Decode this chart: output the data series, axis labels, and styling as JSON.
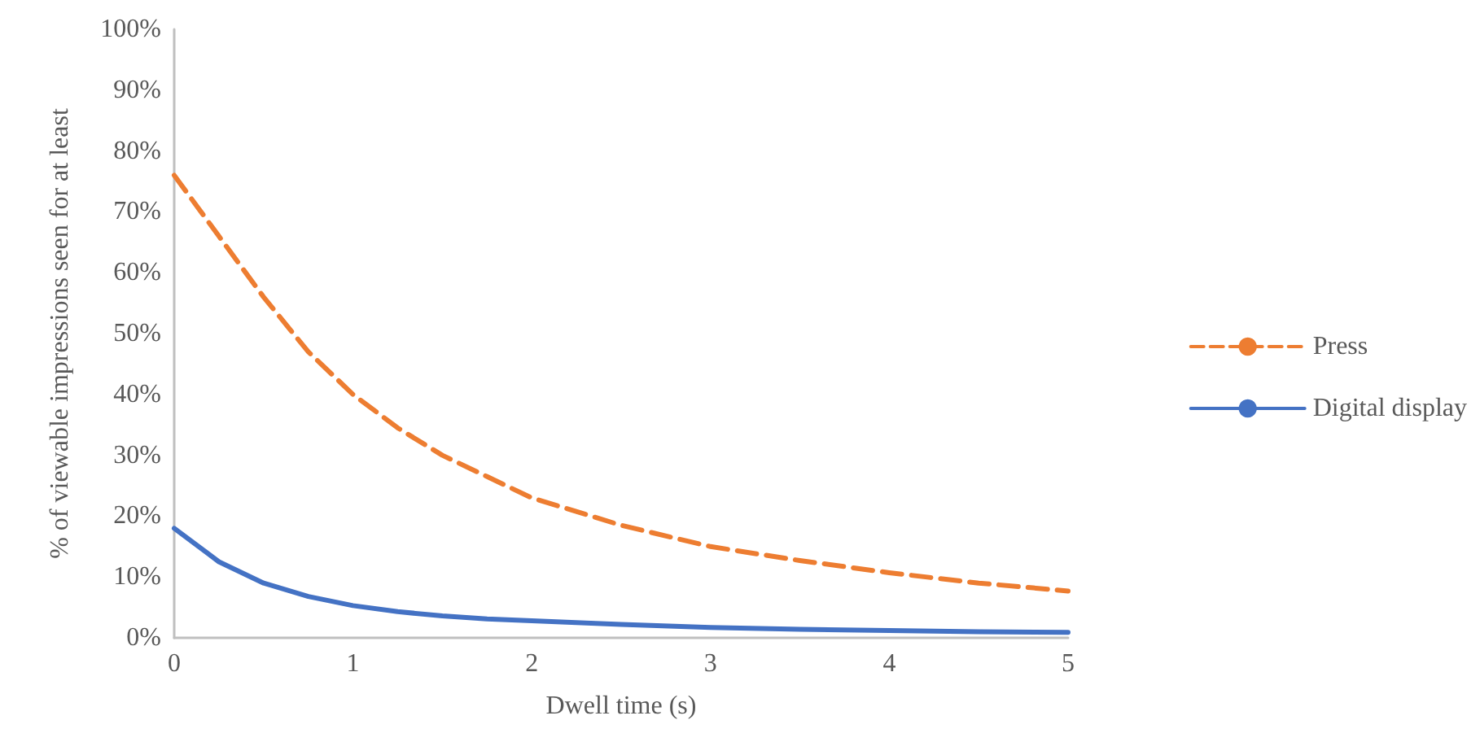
{
  "chart_data": {
    "type": "line",
    "xlabel": "Dwell time (s)",
    "ylabel": "% of viewable impressions seen for at least",
    "x": [
      0,
      0.25,
      0.5,
      0.75,
      1,
      1.25,
      1.5,
      1.75,
      2,
      2.5,
      3,
      3.5,
      4,
      4.5,
      5
    ],
    "series": [
      {
        "name": "Press",
        "color": "#ed7d31",
        "line_style": "dashed",
        "values": [
          76,
          66,
          56,
          47,
          40,
          34.5,
          30,
          26.5,
          23,
          18.5,
          15,
          12.7,
          10.7,
          9,
          7.7
        ]
      },
      {
        "name": "Digital display",
        "color": "#4472c4",
        "line_style": "solid",
        "values": [
          18,
          12.5,
          9,
          6.8,
          5.3,
          4.3,
          3.6,
          3.1,
          2.8,
          2.2,
          1.7,
          1.4,
          1.2,
          1,
          0.9
        ]
      }
    ],
    "xlim": [
      0,
      5
    ],
    "xticks": [
      0,
      1,
      2,
      3,
      4,
      5
    ],
    "ylim": [
      0,
      100
    ],
    "yticks": [
      {
        "value": 0,
        "label": "0%"
      },
      {
        "value": 10,
        "label": "10%"
      },
      {
        "value": 20,
        "label": "20%"
      },
      {
        "value": 30,
        "label": "30%"
      },
      {
        "value": 40,
        "label": "40%"
      },
      {
        "value": 50,
        "label": "50%"
      },
      {
        "value": 60,
        "label": "60%"
      },
      {
        "value": 70,
        "label": "70%"
      },
      {
        "value": 80,
        "label": "80%"
      },
      {
        "value": 90,
        "label": "90%"
      },
      {
        "value": 100,
        "label": "100%"
      }
    ],
    "grid": false,
    "legend": "right",
    "marker": "none"
  }
}
